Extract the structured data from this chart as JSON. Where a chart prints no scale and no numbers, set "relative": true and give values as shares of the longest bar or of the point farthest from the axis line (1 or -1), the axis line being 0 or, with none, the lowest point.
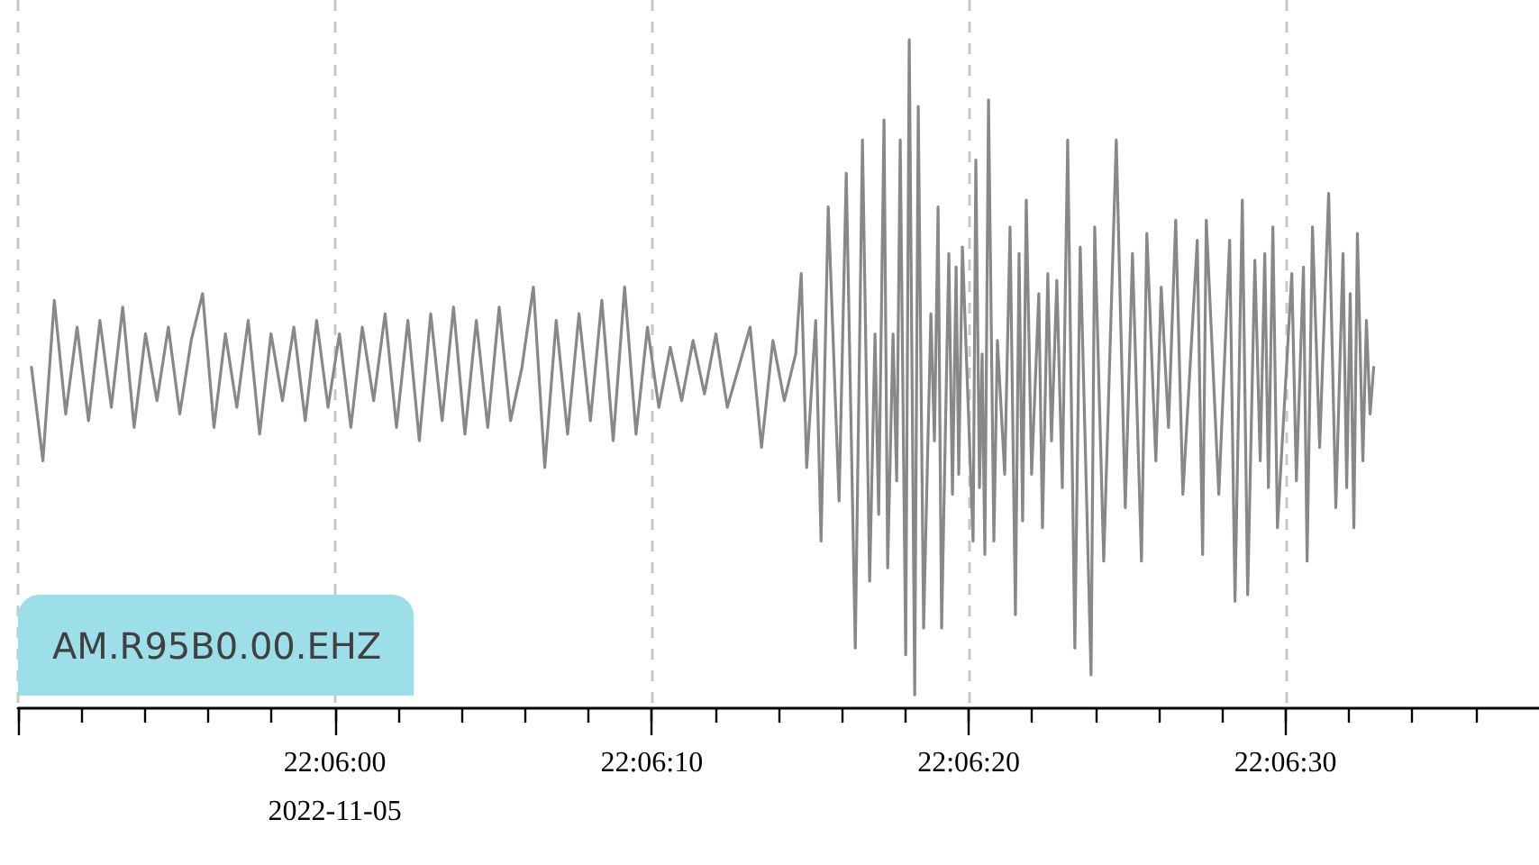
{
  "chart_data": {
    "type": "line",
    "relative": true,
    "color": "#888888",
    "x": [
      22.09734,
      22.09744,
      22.09754,
      22.09764,
      22.09774,
      22.09784,
      22.09794,
      22.09804,
      22.09814,
      22.09824,
      22.09834,
      22.09844,
      22.09854,
      22.09864,
      22.09874,
      22.09884,
      22.09894,
      22.09904,
      22.09914,
      22.09924,
      22.09934,
      22.09944,
      22.09954,
      22.09964,
      22.09974,
      22.09984,
      22.09994,
      22.10004,
      22.10014,
      22.10024,
      22.10034,
      22.10044,
      22.10054,
      22.10064,
      22.10074,
      22.10084,
      22.10094,
      22.10104,
      22.10114,
      22.10124,
      22.10134,
      22.10144,
      22.10154,
      22.10164,
      22.10174,
      22.10184,
      22.10194,
      22.10204,
      22.10214,
      22.10224,
      22.10234,
      22.10244,
      22.10254,
      22.10264,
      22.10274,
      22.10284,
      22.10294,
      22.10304,
      22.10314,
      22.10324,
      22.10334,
      22.10344,
      22.10354,
      22.10364,
      22.10374,
      22.10384,
      22.10394,
      22.10404,
      22.104088,
      22.104136,
      22.104215,
      22.104262,
      22.104325,
      22.10442,
      22.104483,
      22.104562,
      22.104625,
      22.104688,
      22.104735,
      22.104767,
      22.104814,
      22.104846,
      22.104893,
      22.104925,
      22.104956,
      22.105004,
      22.105035,
      22.105083,
      22.105114,
      22.105161,
      22.105225,
      22.105256,
      22.105288,
      22.105319,
      22.105382,
      22.105414,
      22.105446,
      22.105469,
      22.105501,
      22.105595,
      22.105619,
      22.105651,
      22.105674,
      22.105698,
      22.10573,
      22.105777,
      22.105808,
      22.105872,
      22.105919,
      22.105966,
      22.105998,
      22.106029,
      22.106061,
      22.106108,
      22.106171,
      22.106203,
      22.10625,
      22.106282,
      22.106329,
      22.106377,
      22.106424,
      22.106487,
      22.106534,
      22.106629,
      22.106661,
      22.10674,
      22.10685,
      22.106929,
      22.106992,
      22.107071,
      22.107118,
      22.107197,
      22.107244,
      22.107308,
      22.107371,
      22.107434,
      22.10756,
      22.107607,
      22.107639,
      22.107749,
      22.107844,
      22.107891,
      22.107955,
      22.108002,
      22.108065,
      22.108112,
      22.108152,
      22.108184,
      22.108223,
      22.108263,
      22.108389,
      22.108429,
      22.108491,
      22.108523,
      22.10857,
      22.108633,
      22.108712,
      22.108775,
      22.108838,
      22.10887,
      22.108901,
      22.108933,
      22.108964,
      22.109012,
      22.109043,
      22.109075,
      22.109107
    ],
    "values": [
      0.51,
      0.37,
      0.61,
      0.44,
      0.57,
      0.43,
      0.58,
      0.45,
      0.6,
      0.42,
      0.56,
      0.46,
      0.57,
      0.44,
      0.55,
      0.62,
      0.42,
      0.56,
      0.45,
      0.58,
      0.41,
      0.56,
      0.46,
      0.57,
      0.43,
      0.58,
      0.45,
      0.56,
      0.42,
      0.57,
      0.46,
      0.59,
      0.42,
      0.58,
      0.4,
      0.59,
      0.43,
      0.6,
      0.41,
      0.58,
      0.42,
      0.6,
      0.43,
      0.51,
      0.63,
      0.36,
      0.58,
      0.41,
      0.59,
      0.43,
      0.61,
      0.4,
      0.63,
      0.41,
      0.57,
      0.45,
      0.54,
      0.46,
      0.55,
      0.47,
      0.56,
      0.45,
      0.51,
      0.57,
      0.39,
      0.55,
      0.46,
      0.53,
      0.65,
      0.36,
      0.58,
      0.25,
      0.75,
      0.31,
      0.8,
      0.09,
      0.85,
      0.19,
      0.56,
      0.29,
      0.88,
      0.21,
      0.56,
      0.34,
      0.85,
      0.08,
      1.0,
      0.02,
      0.9,
      0.12,
      0.59,
      0.4,
      0.75,
      0.12,
      0.68,
      0.32,
      0.66,
      0.35,
      0.69,
      0.25,
      0.82,
      0.33,
      0.53,
      0.23,
      0.91,
      0.25,
      0.55,
      0.35,
      0.72,
      0.14,
      0.68,
      0.28,
      0.76,
      0.35,
      0.62,
      0.27,
      0.65,
      0.4,
      0.64,
      0.33,
      0.85,
      0.09,
      0.69,
      0.05,
      0.72,
      0.22,
      0.85,
      0.3,
      0.68,
      0.22,
      0.71,
      0.37,
      0.63,
      0.42,
      0.73,
      0.32,
      0.7,
      0.23,
      0.73,
      0.32,
      0.7,
      0.16,
      0.76,
      0.17,
      0.67,
      0.37,
      0.68,
      0.33,
      0.72,
      0.27,
      0.65,
      0.34,
      0.66,
      0.22,
      0.72,
      0.39,
      0.77,
      0.3,
      0.68,
      0.33,
      0.62,
      0.27,
      0.71,
      0.37,
      0.58,
      0.44,
      0.51
    ],
    "xlim": [
      22.097222,
      22.110556
    ],
    "xticks": [
      {
        "value": 22.097222,
        "label": null
      },
      {
        "value": 22.097778,
        "label": null
      },
      {
        "value": 22.098333,
        "label": null
      },
      {
        "value": 22.098889,
        "label": null
      },
      {
        "value": 22.099444,
        "label": null
      },
      {
        "value": 22.1,
        "label": "22:06:00\n2022-11-05"
      },
      {
        "value": 22.100556,
        "label": null
      },
      {
        "value": 22.101111,
        "label": null
      },
      {
        "value": 22.101667,
        "label": null
      },
      {
        "value": 22.102222,
        "label": null
      },
      {
        "value": 22.102778,
        "label": "22:06:10"
      },
      {
        "value": 22.103333,
        "label": null
      },
      {
        "value": 22.103889,
        "label": null
      },
      {
        "value": 22.104444,
        "label": null
      },
      {
        "value": 22.105,
        "label": null
      },
      {
        "value": 22.105556,
        "label": "22:06:20"
      },
      {
        "value": 22.106111,
        "label": null
      },
      {
        "value": 22.106667,
        "label": null
      },
      {
        "value": 22.107222,
        "label": null
      },
      {
        "value": 22.107778,
        "label": null
      },
      {
        "value": 22.108333,
        "label": "22:06:30"
      },
      {
        "value": 22.108889,
        "label": null
      },
      {
        "value": 22.109444,
        "label": null
      },
      {
        "value": 22.11,
        "label": null
      }
    ],
    "grid": "x",
    "annotations": [
      "AM.R95B0.00.EHZ"
    ]
  }
}
